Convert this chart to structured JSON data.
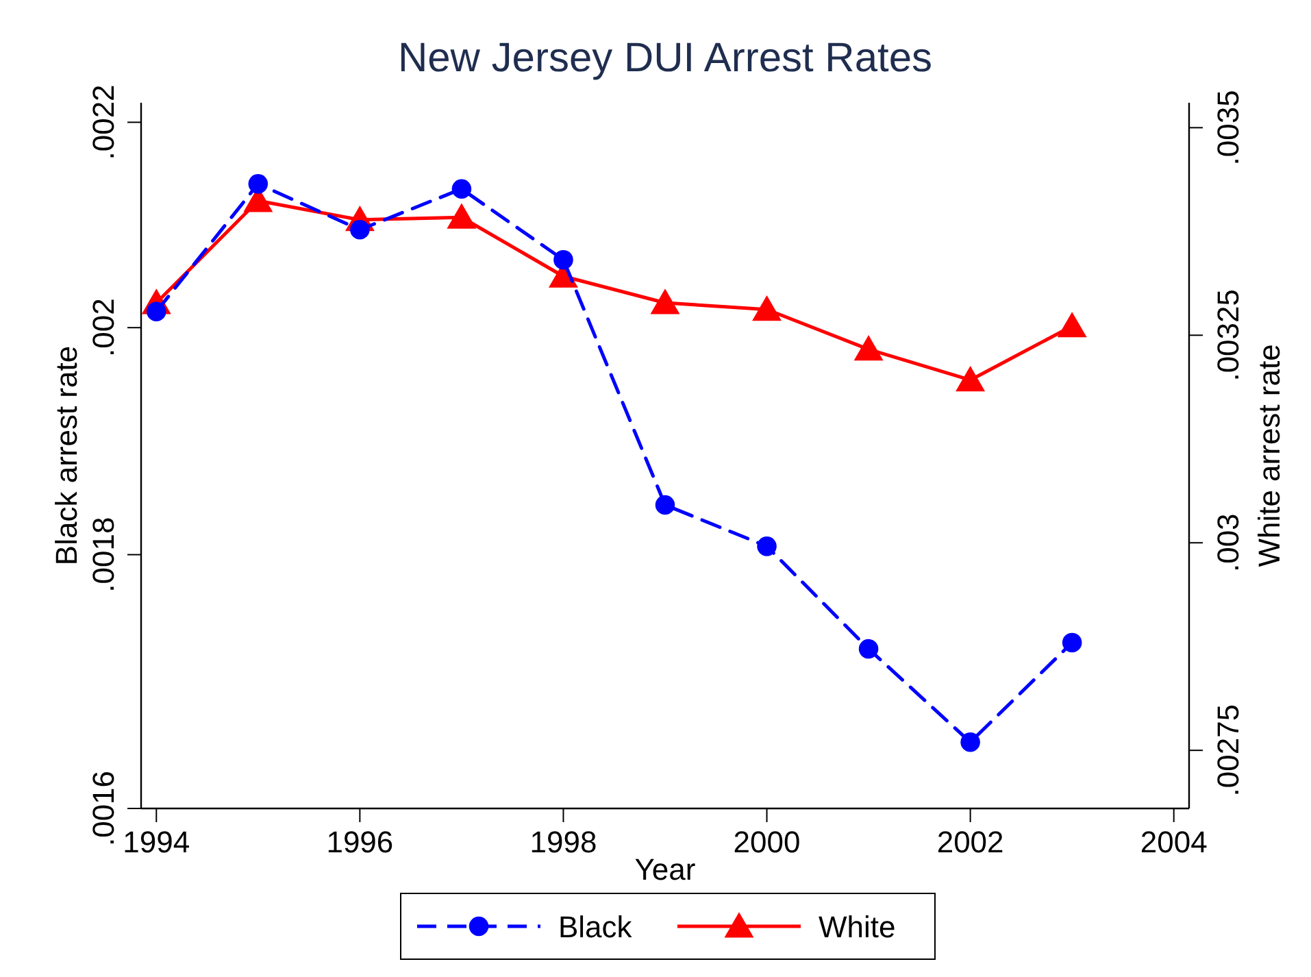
{
  "chart_data": {
    "type": "line",
    "title": "New Jersey DUI Arrest Rates",
    "xlabel": "Year",
    "ylabel": "Black arrest rate",
    "y2label": "White arrest rate",
    "x": [
      1994,
      1995,
      1996,
      1997,
      1998,
      1999,
      2000,
      2001,
      2002,
      2003
    ],
    "series": [
      {
        "name": "Black",
        "color": "#0000ff",
        "marker": "circle",
        "line_style": "dashed",
        "values": [
          0.002015,
          0.002138,
          0.002093,
          0.002133,
          0.002064,
          0.001842,
          0.001807,
          0.001723,
          0.00165,
          0.001728
        ]
      },
      {
        "name": "White",
        "color": "#ff0000",
        "marker": "triangle",
        "line_style": "solid",
        "axis": "y2",
        "values": [
          0.003289,
          0.003412,
          0.003389,
          0.003392,
          0.003321,
          0.003289,
          0.003281,
          0.003233,
          0.003196,
          0.003261
        ]
      }
    ],
    "xlim": [
      1993.85,
      2004.15
    ],
    "xticks": [
      1994,
      1996,
      1998,
      2000,
      2002,
      2004
    ],
    "log": "y",
    "ylim": [
      0.0016,
      0.00222
    ],
    "yticks": [
      {
        "value": 0.0016,
        "label": ".0016"
      },
      {
        "value": 0.0018,
        "label": ".0018"
      },
      {
        "value": 0.002,
        "label": ".002"
      },
      {
        "value": 0.0022,
        "label": ".0022"
      }
    ],
    "y2lim": [
      0.00268,
      0.00353
    ],
    "y2ticks": [
      {
        "value": 0.00275,
        "label": ".00275"
      },
      {
        "value": 0.003,
        "label": ".003"
      },
      {
        "value": 0.00325,
        "label": ".00325"
      },
      {
        "value": 0.0035,
        "label": ".0035"
      }
    ],
    "grid": false,
    "legend": "bottom"
  }
}
